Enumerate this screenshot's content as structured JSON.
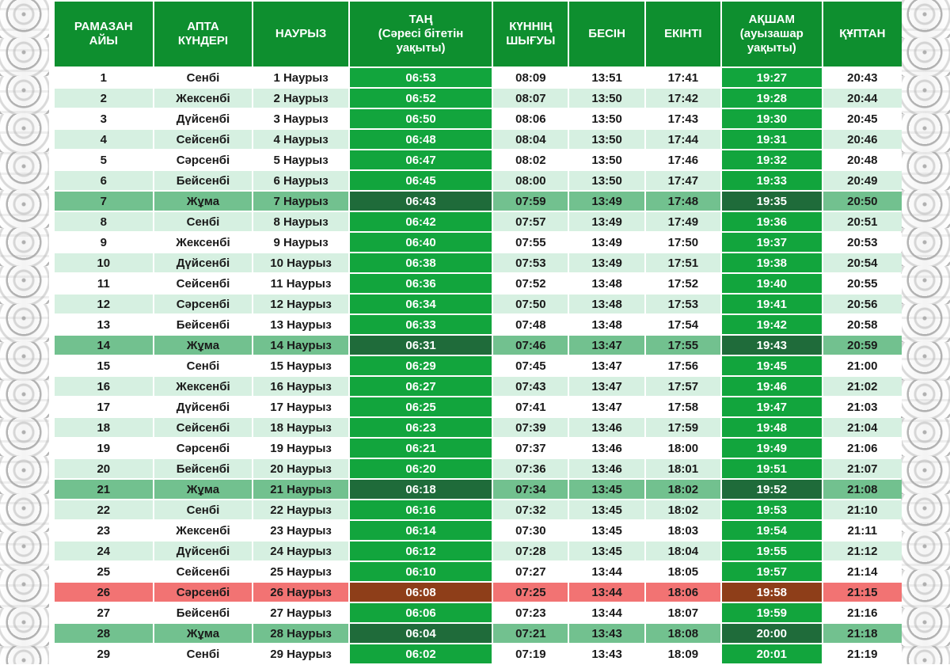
{
  "headers": {
    "day": [
      "РАМАЗАН",
      "АЙЫ"
    ],
    "weekday": [
      "АПТА",
      "КҮНДЕРІ"
    ],
    "date": [
      "НАУРЫЗ"
    ],
    "dawn": [
      "ТАҢ",
      "(Сәресі бітетін",
      "уақыты)"
    ],
    "sunrise": [
      "КҮННІҢ",
      "ШЫҒУЫ"
    ],
    "noon": [
      "БЕСІН"
    ],
    "afternoon": [
      "ЕКІНТІ"
    ],
    "evening": [
      "АҚШАМ",
      "(ауызашар",
      "уақыты)"
    ],
    "night": [
      "ҚҰПТАН"
    ]
  },
  "colors": {
    "header_green": "#0e8f2f",
    "dawn_evening_green": "#12a53d",
    "friday_row": "#72c18f",
    "friday_dark": "#1f6b3a",
    "alt_row": "#d6f0e1",
    "highlight_row": "#f27373",
    "highlight_dark": "#8e3e19"
  },
  "rows": [
    {
      "day": "1",
      "weekday": "Сенбі",
      "date": "1 Наурыз",
      "dawn": "06:53",
      "sunrise": "08:09",
      "noon": "13:51",
      "afternoon": "17:41",
      "evening": "19:27",
      "night": "20:43",
      "style": "A"
    },
    {
      "day": "2",
      "weekday": "Жексенбі",
      "date": "2 Наурыз",
      "dawn": "06:52",
      "sunrise": "08:07",
      "noon": "13:50",
      "afternoon": "17:42",
      "evening": "19:28",
      "night": "20:44",
      "style": "B"
    },
    {
      "day": "3",
      "weekday": "Дүйсенбі",
      "date": "3 Наурыз",
      "dawn": "06:50",
      "sunrise": "08:06",
      "noon": "13:50",
      "afternoon": "17:43",
      "evening": "19:30",
      "night": "20:45",
      "style": "A"
    },
    {
      "day": "4",
      "weekday": "Сейсенбі",
      "date": "4 Наурыз",
      "dawn": "06:48",
      "sunrise": "08:04",
      "noon": "13:50",
      "afternoon": "17:44",
      "evening": "19:31",
      "night": "20:46",
      "style": "B"
    },
    {
      "day": "5",
      "weekday": "Сәрсенбі",
      "date": "5 Наурыз",
      "dawn": "06:47",
      "sunrise": "08:02",
      "noon": "13:50",
      "afternoon": "17:46",
      "evening": "19:32",
      "night": "20:48",
      "style": "A"
    },
    {
      "day": "6",
      "weekday": "Бейсенбі",
      "date": "6 Наурыз",
      "dawn": "06:45",
      "sunrise": "08:00",
      "noon": "13:50",
      "afternoon": "17:47",
      "evening": "19:33",
      "night": "20:49",
      "style": "B"
    },
    {
      "day": "7",
      "weekday": "Жұма",
      "date": "7 Наурыз",
      "dawn": "06:43",
      "sunrise": "07:59",
      "noon": "13:49",
      "afternoon": "17:48",
      "evening": "19:35",
      "night": "20:50",
      "style": "Fri"
    },
    {
      "day": "8",
      "weekday": "Сенбі",
      "date": "8 Наурыз",
      "dawn": "06:42",
      "sunrise": "07:57",
      "noon": "13:49",
      "afternoon": "17:49",
      "evening": "19:36",
      "night": "20:51",
      "style": "B"
    },
    {
      "day": "9",
      "weekday": "Жексенбі",
      "date": "9 Наурыз",
      "dawn": "06:40",
      "sunrise": "07:55",
      "noon": "13:49",
      "afternoon": "17:50",
      "evening": "19:37",
      "night": "20:53",
      "style": "A"
    },
    {
      "day": "10",
      "weekday": "Дүйсенбі",
      "date": "10 Наурыз",
      "dawn": "06:38",
      "sunrise": "07:53",
      "noon": "13:49",
      "afternoon": "17:51",
      "evening": "19:38",
      "night": "20:54",
      "style": "B"
    },
    {
      "day": "11",
      "weekday": "Сейсенбі",
      "date": "11 Наурыз",
      "dawn": "06:36",
      "sunrise": "07:52",
      "noon": "13:48",
      "afternoon": "17:52",
      "evening": "19:40",
      "night": "20:55",
      "style": "A"
    },
    {
      "day": "12",
      "weekday": "Сәрсенбі",
      "date": "12 Наурыз",
      "dawn": "06:34",
      "sunrise": "07:50",
      "noon": "13:48",
      "afternoon": "17:53",
      "evening": "19:41",
      "night": "20:56",
      "style": "B"
    },
    {
      "day": "13",
      "weekday": "Бейсенбі",
      "date": "13 Наурыз",
      "dawn": "06:33",
      "sunrise": "07:48",
      "noon": "13:48",
      "afternoon": "17:54",
      "evening": "19:42",
      "night": "20:58",
      "style": "A"
    },
    {
      "day": "14",
      "weekday": "Жұма",
      "date": "14 Наурыз",
      "dawn": "06:31",
      "sunrise": "07:46",
      "noon": "13:47",
      "afternoon": "17:55",
      "evening": "19:43",
      "night": "20:59",
      "style": "Fri"
    },
    {
      "day": "15",
      "weekday": "Сенбі",
      "date": "15 Наурыз",
      "dawn": "06:29",
      "sunrise": "07:45",
      "noon": "13:47",
      "afternoon": "17:56",
      "evening": "19:45",
      "night": "21:00",
      "style": "A"
    },
    {
      "day": "16",
      "weekday": "Жексенбі",
      "date": "16 Наурыз",
      "dawn": "06:27",
      "sunrise": "07:43",
      "noon": "13:47",
      "afternoon": "17:57",
      "evening": "19:46",
      "night": "21:02",
      "style": "B"
    },
    {
      "day": "17",
      "weekday": "Дүйсенбі",
      "date": "17 Наурыз",
      "dawn": "06:25",
      "sunrise": "07:41",
      "noon": "13:47",
      "afternoon": "17:58",
      "evening": "19:47",
      "night": "21:03",
      "style": "A"
    },
    {
      "day": "18",
      "weekday": "Сейсенбі",
      "date": "18 Наурыз",
      "dawn": "06:23",
      "sunrise": "07:39",
      "noon": "13:46",
      "afternoon": "17:59",
      "evening": "19:48",
      "night": "21:04",
      "style": "B"
    },
    {
      "day": "19",
      "weekday": "Сәрсенбі",
      "date": "19 Наурыз",
      "dawn": "06:21",
      "sunrise": "07:37",
      "noon": "13:46",
      "afternoon": "18:00",
      "evening": "19:49",
      "night": "21:06",
      "style": "A"
    },
    {
      "day": "20",
      "weekday": "Бейсенбі",
      "date": "20 Наурыз",
      "dawn": "06:20",
      "sunrise": "07:36",
      "noon": "13:46",
      "afternoon": "18:01",
      "evening": "19:51",
      "night": "21:07",
      "style": "B"
    },
    {
      "day": "21",
      "weekday": "Жұма",
      "date": "21 Наурыз",
      "dawn": "06:18",
      "sunrise": "07:34",
      "noon": "13:45",
      "afternoon": "18:02",
      "evening": "19:52",
      "night": "21:08",
      "style": "Fri"
    },
    {
      "day": "22",
      "weekday": "Сенбі",
      "date": "22 Наурыз",
      "dawn": "06:16",
      "sunrise": "07:32",
      "noon": "13:45",
      "afternoon": "18:02",
      "evening": "19:53",
      "night": "21:10",
      "style": "B"
    },
    {
      "day": "23",
      "weekday": "Жексенбі",
      "date": "23 Наурыз",
      "dawn": "06:14",
      "sunrise": "07:30",
      "noon": "13:45",
      "afternoon": "18:03",
      "evening": "19:54",
      "night": "21:11",
      "style": "A"
    },
    {
      "day": "24",
      "weekday": "Дүйсенбі",
      "date": "24 Наурыз",
      "dawn": "06:12",
      "sunrise": "07:28",
      "noon": "13:45",
      "afternoon": "18:04",
      "evening": "19:55",
      "night": "21:12",
      "style": "B"
    },
    {
      "day": "25",
      "weekday": "Сейсенбі",
      "date": "25 Наурыз",
      "dawn": "06:10",
      "sunrise": "07:27",
      "noon": "13:44",
      "afternoon": "18:05",
      "evening": "19:57",
      "night": "21:14",
      "style": "A"
    },
    {
      "day": "26",
      "weekday": "Сәрсенбі",
      "date": "26 Наурыз",
      "dawn": "06:08",
      "sunrise": "07:25",
      "noon": "13:44",
      "afternoon": "18:06",
      "evening": "19:58",
      "night": "21:15",
      "style": "Hi"
    },
    {
      "day": "27",
      "weekday": "Бейсенбі",
      "date": "27 Наурыз",
      "dawn": "06:06",
      "sunrise": "07:23",
      "noon": "13:44",
      "afternoon": "18:07",
      "evening": "19:59",
      "night": "21:16",
      "style": "A"
    },
    {
      "day": "28",
      "weekday": "Жұма",
      "date": "28 Наурыз",
      "dawn": "06:04",
      "sunrise": "07:21",
      "noon": "13:43",
      "afternoon": "18:08",
      "evening": "20:00",
      "night": "21:18",
      "style": "Fri"
    },
    {
      "day": "29",
      "weekday": "Сенбі",
      "date": "29 Наурыз",
      "dawn": "06:02",
      "sunrise": "07:19",
      "noon": "13:43",
      "afternoon": "18:09",
      "evening": "20:01",
      "night": "21:19",
      "style": "A"
    }
  ]
}
